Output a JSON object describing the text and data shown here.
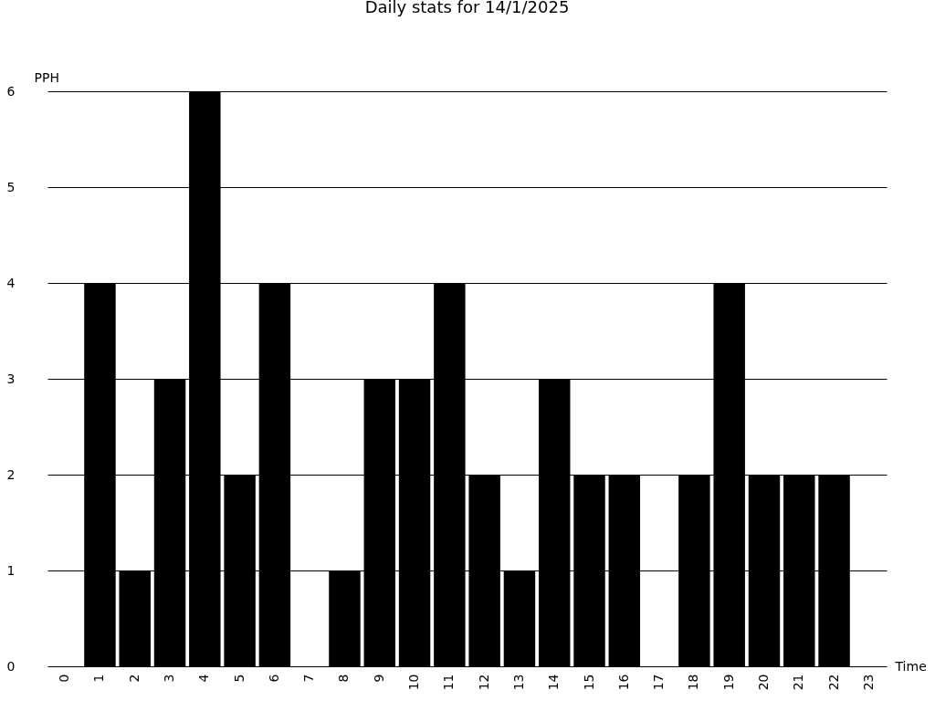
{
  "chart_data": {
    "type": "bar",
    "title": "Daily stats for 14/1/2025",
    "xlabel": "Time",
    "ylabel": "PPH",
    "categories": [
      "0",
      "1",
      "2",
      "3",
      "4",
      "5",
      "6",
      "7",
      "8",
      "9",
      "10",
      "11",
      "12",
      "13",
      "14",
      "15",
      "16",
      "17",
      "18",
      "19",
      "20",
      "21",
      "22",
      "23"
    ],
    "values": [
      0,
      4,
      1,
      3,
      6,
      2,
      4,
      0,
      1,
      3,
      3,
      4,
      2,
      1,
      3,
      2,
      2,
      0,
      2,
      4,
      2,
      2,
      2,
      0
    ],
    "color": "#000000",
    "ylim": [
      0,
      6
    ],
    "yticks": [
      0,
      1,
      2,
      3,
      4,
      5,
      6
    ],
    "grid": "y"
  }
}
